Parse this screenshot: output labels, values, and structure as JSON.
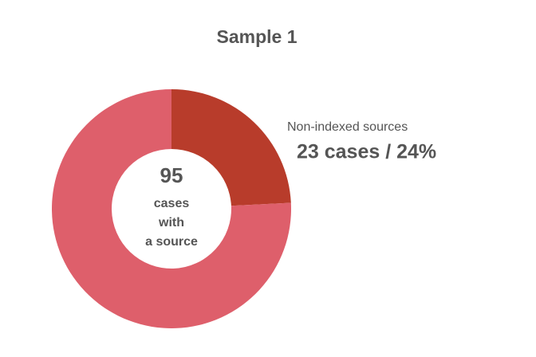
{
  "chart_data": {
    "type": "donut",
    "title": "Sample 1",
    "categories": [
      "Non-indexed sources",
      null
    ],
    "values": [
      23,
      72
    ],
    "value_labels": [
      "23 cases / 24%",
      null
    ],
    "colors": [
      "#b83c2b",
      "#de5f6b"
    ],
    "total": 95,
    "total_caption": [
      "cases",
      "with",
      "a source"
    ]
  }
}
